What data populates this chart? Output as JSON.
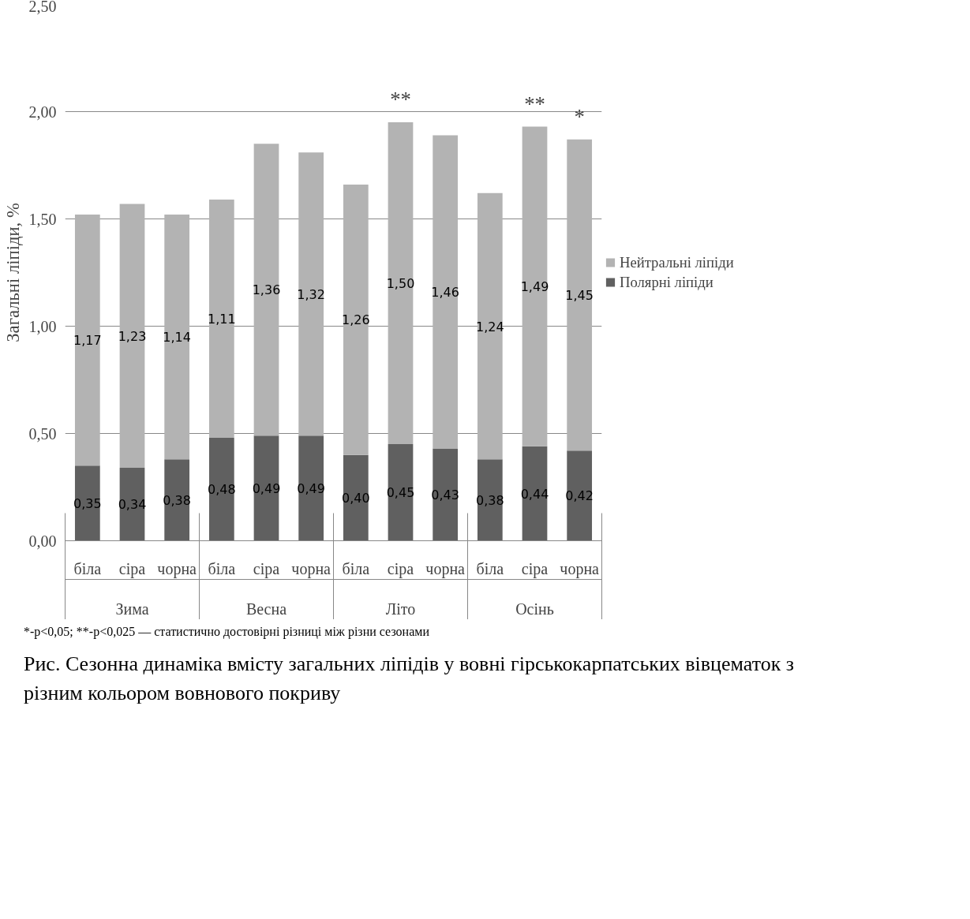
{
  "chart_data": {
    "type": "bar",
    "stacked": true,
    "title": "Рис.  Сезонна динаміка вмісту загальних ліпідів  у вовні гірськокарпатських вівцематок з різним кольором вовнового покриву",
    "ylabel": "Загальні ліпіди, %",
    "categories": [
      "біла",
      "сіра",
      "чорна",
      "біла",
      "сіра",
      "чорна",
      "біла",
      "сіра",
      "чорна",
      "біла",
      "сіра",
      "чорна"
    ],
    "series": [
      {
        "name": "Полярні ліпіди",
        "color": "#606060",
        "values": [
          0.35,
          0.34,
          0.38,
          0.48,
          0.49,
          0.49,
          0.4,
          0.45,
          0.43,
          0.38,
          0.44,
          0.42
        ],
        "value_labels": [
          "0,35",
          "0,34",
          "0,38",
          "0,48",
          "0,49",
          "0,49",
          "0,40",
          "0,45",
          "0,43",
          "0,38",
          "0,44",
          "0,42"
        ]
      },
      {
        "name": "Нейтральні ліпіди",
        "color": "#b3b3b3",
        "values": [
          1.17,
          1.23,
          1.14,
          1.11,
          1.36,
          1.32,
          1.26,
          1.5,
          1.46,
          1.24,
          1.49,
          1.45
        ],
        "value_labels": [
          "1,17",
          "1,23",
          "1,14",
          "1,11",
          "1,36",
          "1,32",
          "1,26",
          "1,50",
          "1,46",
          "1,24",
          "1,49",
          "1,45"
        ]
      }
    ],
    "ylim": [
      0,
      2.5
    ],
    "yticks": [
      {
        "value": 0,
        "label": "0,00"
      },
      {
        "value": 0.5,
        "label": "0,50"
      },
      {
        "value": 1,
        "label": "1,00"
      },
      {
        "value": 1.5,
        "label": "1,50"
      },
      {
        "value": 2,
        "label": "2,00"
      },
      {
        "value": 2.5,
        "label": "2,50"
      }
    ],
    "grid": "y",
    "legend": "right",
    "annotations": [
      "Зима",
      "Весна",
      "Літо",
      "Осінь",
      "**",
      "**",
      "*",
      "*-p<0,05; **-p<0,025 — статистично достовірні різниці між різни сезонами"
    ]
  }
}
